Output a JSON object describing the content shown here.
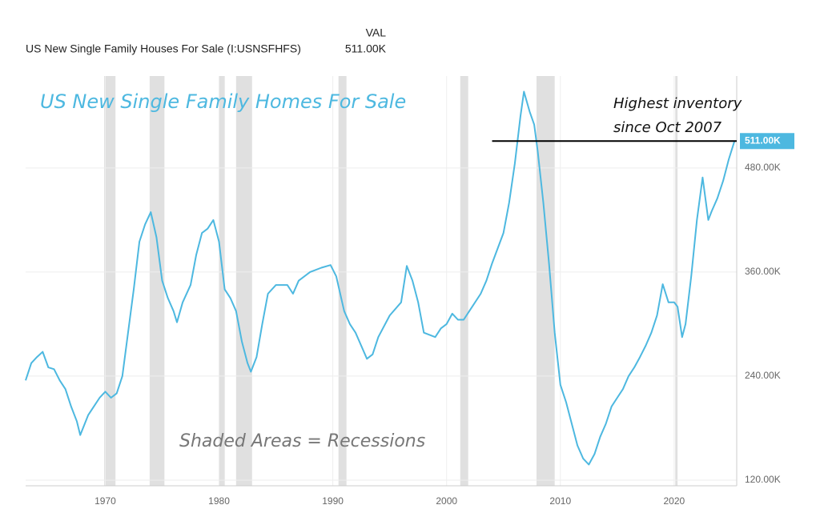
{
  "header": {
    "column": "VAL",
    "series_name": "US New Single Family Houses For Sale (I:USNSFHFS)",
    "value": "511.00K"
  },
  "chart_data": {
    "type": "line",
    "title": "US New Single Family Homes For Sale",
    "annotation_lines": [
      "Highest inventory",
      "since Oct 2007"
    ],
    "shading_note": "Shaded Areas = Recessions",
    "color": "#4db8e0",
    "x": [
      1963,
      1963.5,
      1964,
      1964.5,
      1965,
      1965.5,
      1966,
      1966.5,
      1967,
      1967.5,
      1967.8,
      1968.5,
      1969,
      1969.5,
      1970,
      1970.5,
      1971,
      1971.5,
      1972,
      1972.5,
      1973,
      1973.5,
      1974,
      1974.5,
      1975,
      1975.5,
      1976,
      1976.3,
      1976.8,
      1977.5,
      1978,
      1978.5,
      1979,
      1979.5,
      1980,
      1980.5,
      1981,
      1981.5,
      1982,
      1982.5,
      1982.8,
      1983.3,
      1983.8,
      1984.3,
      1985,
      1986,
      1986.5,
      1987,
      1988,
      1989,
      1989.8,
      1990.3,
      1991,
      1991.5,
      1992,
      1992.5,
      1993,
      1993.5,
      1994,
      1995,
      1996,
      1996.5,
      1997,
      1997.5,
      1998,
      1999,
      1999.5,
      2000,
      2000.5,
      2001,
      2001.5,
      2002,
      2003,
      2003.5,
      2004,
      2005,
      2005.5,
      2006,
      2006.5,
      2006.8,
      2007.3,
      2007.7,
      2008,
      2008.5,
      2009,
      2009.5,
      2010,
      2010.5,
      2011,
      2011.5,
      2012,
      2012.5,
      2013,
      2013.5,
      2014,
      2014.5,
      2015,
      2015.5,
      2016,
      2016.5,
      2017,
      2017.5,
      2018,
      2018.5,
      2019,
      2019.5,
      2020,
      2020.3,
      2020.7,
      2021,
      2021.5,
      2022,
      2022.5,
      2023,
      2023.3,
      2023.8,
      2024.3,
      2024.8,
      2025.3
    ],
    "values": [
      235,
      255,
      262,
      268,
      250,
      248,
      235,
      225,
      205,
      188,
      172,
      195,
      205,
      215,
      222,
      215,
      220,
      240,
      290,
      340,
      395,
      415,
      429,
      400,
      350,
      330,
      315,
      302,
      325,
      345,
      380,
      405,
      410,
      420,
      395,
      340,
      330,
      315,
      280,
      255,
      245,
      262,
      300,
      335,
      345,
      345,
      335,
      350,
      360,
      365,
      368,
      355,
      315,
      300,
      290,
      275,
      260,
      265,
      285,
      310,
      325,
      367,
      350,
      325,
      290,
      285,
      295,
      300,
      312,
      305,
      305,
      315,
      335,
      350,
      370,
      405,
      440,
      485,
      540,
      568,
      545,
      530,
      500,
      440,
      370,
      290,
      230,
      210,
      185,
      160,
      145,
      138,
      150,
      170,
      185,
      205,
      215,
      225,
      240,
      250,
      262,
      275,
      290,
      310,
      346,
      325,
      325,
      320,
      285,
      300,
      355,
      420,
      469,
      420,
      430,
      445,
      465,
      490,
      511
    ],
    "recessions": [
      [
        1969.9,
        1970.9
      ],
      [
        1973.9,
        1975.2
      ],
      [
        1980.0,
        1980.5
      ],
      [
        1981.5,
        1982.9
      ],
      [
        1990.5,
        1991.2
      ],
      [
        2001.2,
        2001.9
      ],
      [
        2007.9,
        2009.5
      ],
      [
        2020.1,
        2020.3
      ]
    ],
    "reference_line": {
      "value": 511,
      "label": "511.00K",
      "x_start": 2004
    },
    "xlim": [
      1963,
      2025.5
    ],
    "xticks": [
      1970,
      1980,
      1990,
      2000,
      2010,
      2020
    ],
    "ylim": [
      113.5,
      586
    ],
    "yticks": [
      {
        "value": 120,
        "label": "120.00K"
      },
      {
        "value": 240,
        "label": "240.00K"
      },
      {
        "value": 360,
        "label": "360.00K"
      },
      {
        "value": 480,
        "label": "480.00K"
      }
    ],
    "grid": true
  }
}
